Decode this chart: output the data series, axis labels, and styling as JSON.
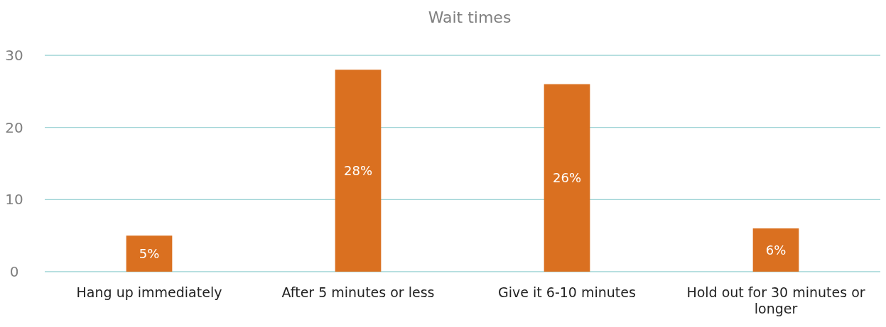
{
  "chart_data": {
    "type": "bar",
    "title": "Wait times",
    "categories": [
      "Hang up immediately",
      "After 5 minutes or less",
      "Give it 6-10 minutes",
      "Hold out for 30 minutes or longer"
    ],
    "values": [
      5,
      28,
      26,
      6
    ],
    "value_labels": [
      "5%",
      "28%",
      "26%",
      "6%"
    ],
    "color": "#da7020",
    "ylim": [
      0,
      30
    ],
    "yticks": [
      0,
      10,
      20,
      30
    ],
    "grid": "y"
  }
}
